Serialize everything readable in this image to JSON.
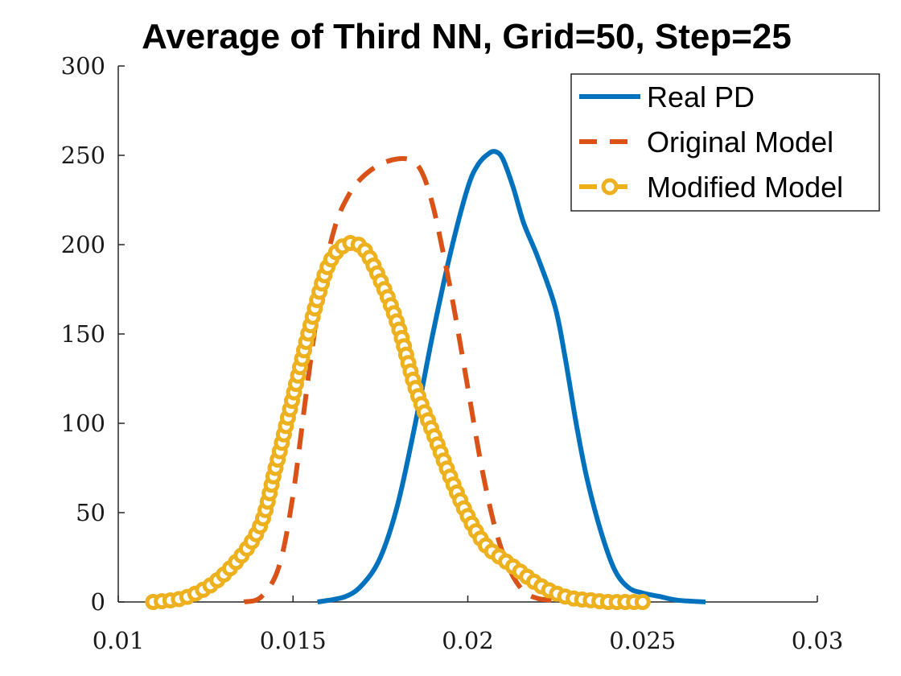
{
  "chart_data": {
    "type": "line",
    "title": "Average of Third NN, Grid=50, Step=25",
    "xlabel": "",
    "ylabel": "",
    "xlim": [
      0.01,
      0.03
    ],
    "ylim": [
      0,
      300
    ],
    "xticks": [
      0.01,
      0.015,
      0.02,
      0.025,
      0.03
    ],
    "xtick_labels": [
      "0.01",
      "0.015",
      "0.02",
      "0.025",
      "0.03"
    ],
    "yticks": [
      0,
      50,
      100,
      150,
      200,
      250,
      300
    ],
    "ytick_labels": [
      "0",
      "50",
      "100",
      "150",
      "200",
      "250",
      "300"
    ],
    "grid": false,
    "legend_position": "top-right",
    "series": [
      {
        "name": "Real PD",
        "style": "solid",
        "color": "#0072BD",
        "x": [
          0.0157,
          0.0165,
          0.017,
          0.0175,
          0.018,
          0.0185,
          0.019,
          0.0195,
          0.02,
          0.0203,
          0.0206,
          0.0208,
          0.021,
          0.0213,
          0.0216,
          0.022,
          0.0225,
          0.0228,
          0.0231,
          0.0234,
          0.0238,
          0.0242,
          0.0246,
          0.025,
          0.0255,
          0.026,
          0.0268
        ],
        "y": [
          0,
          3,
          10,
          25,
          55,
          100,
          150,
          195,
          232,
          245,
          251,
          252,
          248,
          232,
          212,
          193,
          165,
          135,
          100,
          70,
          40,
          18,
          8,
          5,
          3,
          1,
          0
        ]
      },
      {
        "name": "Original Model",
        "style": "dashed",
        "color": "#D95319",
        "x": [
          0.0136,
          0.0141,
          0.0146,
          0.015,
          0.0154,
          0.0158,
          0.0162,
          0.0166,
          0.017,
          0.0175,
          0.018,
          0.0184,
          0.0187,
          0.019,
          0.0193,
          0.0196,
          0.02,
          0.0204,
          0.0208,
          0.0212,
          0.0216,
          0.022,
          0.0224,
          0.0228
        ],
        "y": [
          0,
          3,
          20,
          60,
          120,
          175,
          210,
          228,
          238,
          245,
          248,
          247,
          240,
          222,
          195,
          165,
          120,
          75,
          40,
          18,
          6,
          2,
          1,
          0
        ]
      },
      {
        "name": "Modified Model",
        "style": "dashed-circle",
        "color": "#EDB120",
        "x": [
          0.011,
          0.012,
          0.013,
          0.014,
          0.0145,
          0.015,
          0.0155,
          0.016,
          0.0165,
          0.017,
          0.0175,
          0.018,
          0.0185,
          0.019,
          0.0195,
          0.02,
          0.0205,
          0.021,
          0.0215,
          0.022,
          0.0225,
          0.023,
          0.0235,
          0.024,
          0.0245,
          0.025
        ],
        "y": [
          0,
          3,
          15,
          40,
          75,
          115,
          155,
          188,
          200,
          198,
          180,
          155,
          120,
          95,
          70,
          48,
          32,
          24,
          17,
          10,
          5,
          2,
          1,
          0,
          0,
          0
        ]
      }
    ]
  }
}
